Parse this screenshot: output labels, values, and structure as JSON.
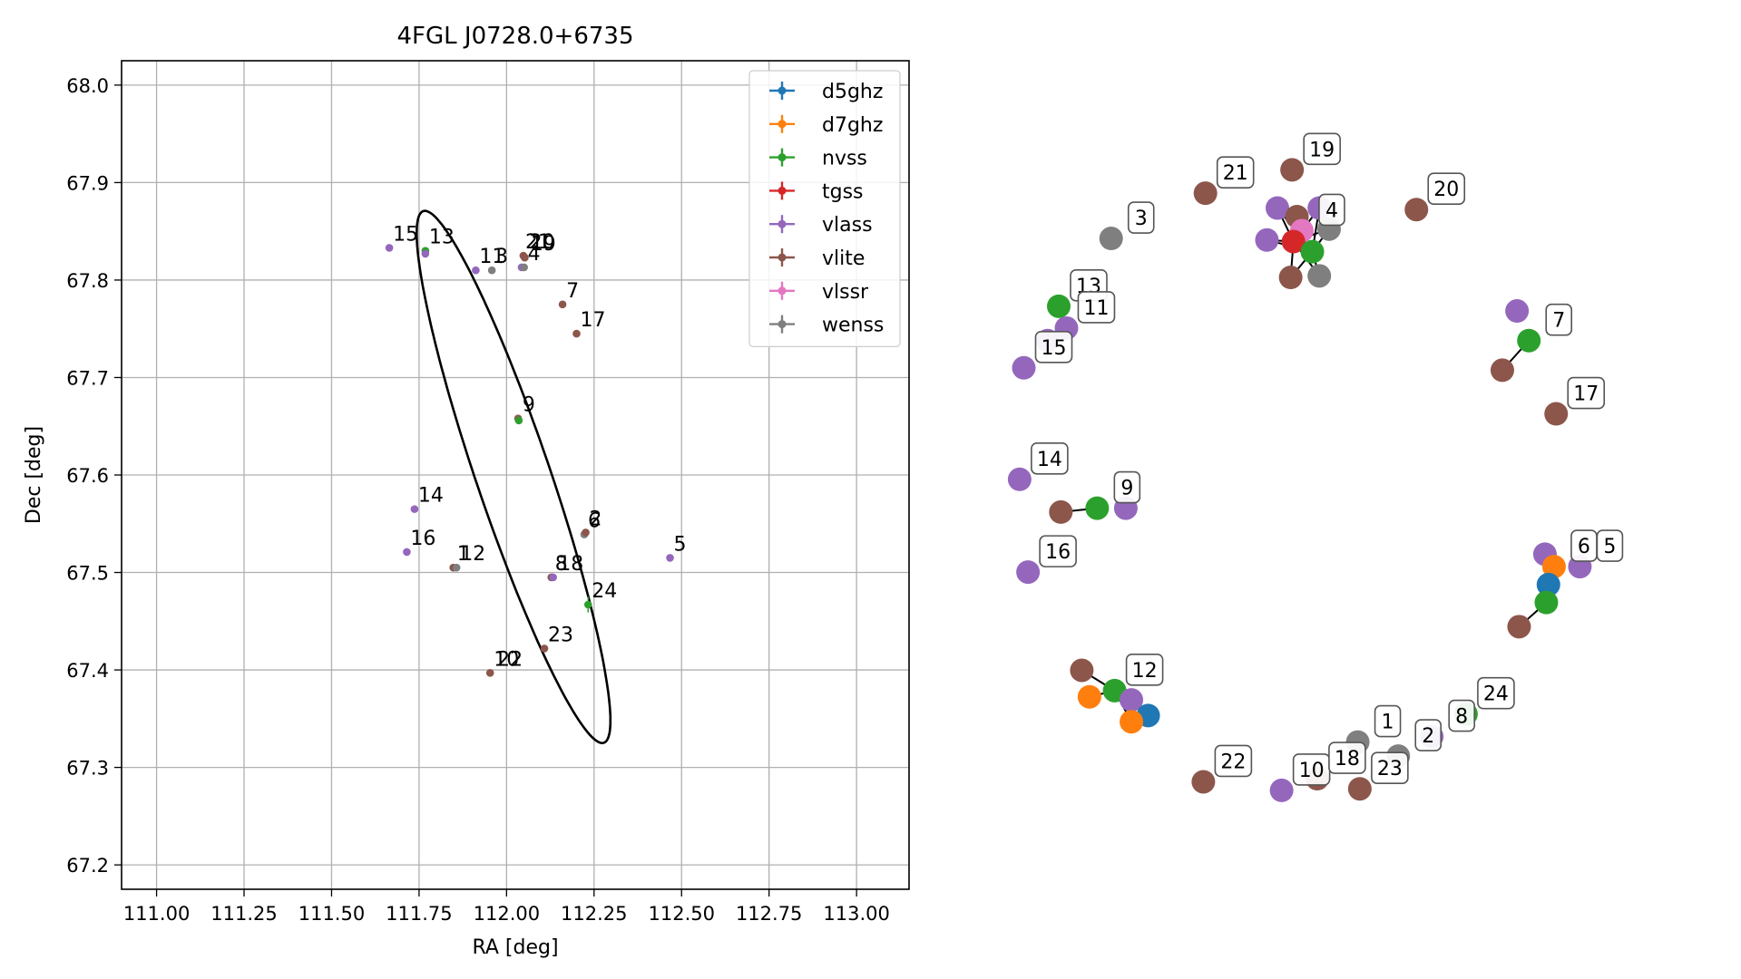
{
  "colors": {
    "d5ghz": "#1f77b4",
    "d7ghz": "#ff7f0e",
    "nvss": "#2ca02c",
    "tgss": "#d62728",
    "vlass": "#9467bd",
    "vlite": "#8c564b",
    "vlssr": "#e377c2",
    "wenss": "#7f7f7f",
    "grid": "#b0b0b0",
    "label_box_edge": "#555555"
  },
  "chart_data": [
    {
      "type": "scatter",
      "title": "4FGL J0728.0+6735",
      "xlabel": "RA [deg]",
      "ylabel": "Dec [deg]",
      "xlim": [
        110.9,
        113.15
      ],
      "ylim": [
        67.175,
        68.025
      ],
      "xticks": [
        111.0,
        111.25,
        111.5,
        111.75,
        112.0,
        112.25,
        112.5,
        112.75,
        113.0
      ],
      "xtick_labels": [
        "111.00",
        "111.25",
        "111.50",
        "111.75",
        "112.00",
        "112.25",
        "112.50",
        "112.75",
        "113.00"
      ],
      "yticks": [
        67.2,
        67.3,
        67.4,
        67.5,
        67.6,
        67.7,
        67.8,
        67.9,
        68.0
      ],
      "ytick_labels": [
        "67.2",
        "67.3",
        "67.4",
        "67.5",
        "67.6",
        "67.7",
        "67.8",
        "67.9",
        "68.0"
      ],
      "grid": true,
      "legend_position": "top-right",
      "legend": [
        "d5ghz",
        "d7ghz",
        "nvss",
        "tgss",
        "vlass",
        "vlite",
        "vlssr",
        "wenss"
      ],
      "ellipse": {
        "center": [
          112.02,
          67.598
        ],
        "semi_major_ra": 0.271,
        "semi_major_dec": 0.267,
        "semi_minor": 0.08
      },
      "points": [
        {
          "ra": 111.665,
          "dec": 67.833,
          "survey": "vlass"
        },
        {
          "ra": 111.768,
          "dec": 67.83,
          "survey": "nvss"
        },
        {
          "ra": 111.768,
          "dec": 67.827,
          "survey": "vlass"
        },
        {
          "ra": 111.912,
          "dec": 67.81,
          "survey": "vlass"
        },
        {
          "ra": 111.958,
          "dec": 67.81,
          "survey": "wenss"
        },
        {
          "ra": 112.048,
          "dec": 67.825,
          "survey": "vlite"
        },
        {
          "ra": 112.052,
          "dec": 67.823,
          "survey": "vlite"
        },
        {
          "ra": 112.043,
          "dec": 67.813,
          "survey": "vlass"
        },
        {
          "ra": 112.05,
          "dec": 67.813,
          "survey": "wenss"
        },
        {
          "ra": 112.16,
          "dec": 67.775,
          "survey": "vlite"
        },
        {
          "ra": 112.2,
          "dec": 67.745,
          "survey": "vlite"
        },
        {
          "ra": 112.033,
          "dec": 67.658,
          "survey": "vlite"
        },
        {
          "ra": 112.035,
          "dec": 67.656,
          "survey": "nvss"
        },
        {
          "ra": 111.737,
          "dec": 67.565,
          "survey": "vlass"
        },
        {
          "ra": 111.715,
          "dec": 67.521,
          "survey": "vlass"
        },
        {
          "ra": 112.222,
          "dec": 67.539,
          "survey": "wenss"
        },
        {
          "ra": 112.226,
          "dec": 67.541,
          "survey": "vlite"
        },
        {
          "ra": 112.467,
          "dec": 67.515,
          "survey": "vlass"
        },
        {
          "ra": 111.848,
          "dec": 67.505,
          "survey": "vlite"
        },
        {
          "ra": 111.857,
          "dec": 67.505,
          "survey": "wenss"
        },
        {
          "ra": 112.128,
          "dec": 67.495,
          "survey": "vlite"
        },
        {
          "ra": 112.133,
          "dec": 67.495,
          "survey": "vlass"
        },
        {
          "ra": 112.233,
          "dec": 67.467,
          "survey": "nvss",
          "dec_err": 0.008
        },
        {
          "ra": 112.108,
          "dec": 67.422,
          "survey": "vlite"
        },
        {
          "ra": 111.953,
          "dec": 67.397,
          "survey": "vlite"
        }
      ],
      "labels": [
        {
          "text": "15",
          "ra": 111.665,
          "dec": 67.833
        },
        {
          "text": "13",
          "ra": 111.768,
          "dec": 67.83
        },
        {
          "text": "11",
          "ra": 111.912,
          "dec": 67.81
        },
        {
          "text": "3",
          "ra": 111.958,
          "dec": 67.81
        },
        {
          "text": "21",
          "ra": 112.043,
          "dec": 67.825
        },
        {
          "text": "20",
          "ra": 112.055,
          "dec": 67.825
        },
        {
          "text": "19",
          "ra": 112.058,
          "dec": 67.823
        },
        {
          "text": "4",
          "ra": 112.05,
          "dec": 67.813
        },
        {
          "text": "7",
          "ra": 112.16,
          "dec": 67.775
        },
        {
          "text": "17",
          "ra": 112.2,
          "dec": 67.745
        },
        {
          "text": "9",
          "ra": 112.035,
          "dec": 67.658
        },
        {
          "text": "14",
          "ra": 111.737,
          "dec": 67.565
        },
        {
          "text": "16",
          "ra": 111.715,
          "dec": 67.521
        },
        {
          "text": "6",
          "ra": 112.222,
          "dec": 67.539
        },
        {
          "text": "2",
          "ra": 112.226,
          "dec": 67.541
        },
        {
          "text": "5",
          "ra": 112.467,
          "dec": 67.515
        },
        {
          "text": "1",
          "ra": 111.848,
          "dec": 67.505
        },
        {
          "text": "12",
          "ra": 111.857,
          "dec": 67.505
        },
        {
          "text": "8",
          "ra": 112.128,
          "dec": 67.495
        },
        {
          "text": "18",
          "ra": 112.137,
          "dec": 67.495
        },
        {
          "text": "24",
          "ra": 112.233,
          "dec": 67.467
        },
        {
          "text": "23",
          "ra": 112.108,
          "dec": 67.422
        },
        {
          "text": "10",
          "ra": 111.953,
          "dec": 67.397
        },
        {
          "text": "22",
          "ra": 111.963,
          "dec": 67.397
        }
      ]
    },
    {
      "type": "network",
      "description_free": true,
      "nodes": [
        {
          "id": "n4a",
          "survey": "vlass",
          "x": 0.4,
          "y": 0.125
        },
        {
          "id": "n4b",
          "survey": "vlass",
          "x": 0.46,
          "y": 0.125
        },
        {
          "id": "n4c",
          "survey": "vlite",
          "x": 0.428,
          "y": 0.136
        },
        {
          "id": "n4d",
          "survey": "vlass",
          "x": 0.385,
          "y": 0.166
        },
        {
          "id": "n4e",
          "survey": "vlssr",
          "x": 0.435,
          "y": 0.154
        },
        {
          "id": "n4f",
          "survey": "wenss",
          "x": 0.474,
          "y": 0.152
        },
        {
          "id": "n4g",
          "survey": "tgss",
          "x": 0.423,
          "y": 0.168
        },
        {
          "id": "n4h",
          "survey": "nvss",
          "x": 0.45,
          "y": 0.181
        },
        {
          "id": "n4i",
          "survey": "vlite",
          "x": 0.419,
          "y": 0.214
        },
        {
          "id": "n4j",
          "survey": "wenss",
          "x": 0.46,
          "y": 0.212
        },
        {
          "id": "n19",
          "survey": "vlite",
          "x": 0.421,
          "y": 0.076
        },
        {
          "id": "n21",
          "survey": "vlite",
          "x": 0.297,
          "y": 0.106
        },
        {
          "id": "n20",
          "survey": "vlite",
          "x": 0.599,
          "y": 0.127
        },
        {
          "id": "n3",
          "survey": "wenss",
          "x": 0.162,
          "y": 0.164
        },
        {
          "id": "n13a",
          "survey": "nvss",
          "x": 0.087,
          "y": 0.251
        },
        {
          "id": "n13b",
          "survey": "vlass",
          "x": 0.098,
          "y": 0.279
        },
        {
          "id": "n13c",
          "survey": "vlass",
          "x": 0.071,
          "y": 0.295
        },
        {
          "id": "n15",
          "survey": "vlass",
          "x": 0.037,
          "y": 0.33
        },
        {
          "id": "n7a",
          "survey": "vlass",
          "x": 0.743,
          "y": 0.257
        },
        {
          "id": "n7b",
          "survey": "nvss",
          "x": 0.76,
          "y": 0.295
        },
        {
          "id": "n7c",
          "survey": "vlite",
          "x": 0.722,
          "y": 0.333
        },
        {
          "id": "n17",
          "survey": "vlite",
          "x": 0.799,
          "y": 0.389
        },
        {
          "id": "n14",
          "survey": "vlass",
          "x": 0.031,
          "y": 0.473
        },
        {
          "id": "n9a",
          "survey": "vlite",
          "x": 0.09,
          "y": 0.515
        },
        {
          "id": "n9b",
          "survey": "nvss",
          "x": 0.142,
          "y": 0.51
        },
        {
          "id": "n9c",
          "survey": "vlass",
          "x": 0.183,
          "y": 0.51
        },
        {
          "id": "n16",
          "survey": "vlass",
          "x": 0.043,
          "y": 0.592
        },
        {
          "id": "n6a",
          "survey": "vlass",
          "x": 0.783,
          "y": 0.569
        },
        {
          "id": "n6b",
          "survey": "d7ghz",
          "x": 0.796,
          "y": 0.585
        },
        {
          "id": "n6c",
          "survey": "d5ghz",
          "x": 0.788,
          "y": 0.608
        },
        {
          "id": "n6d",
          "survey": "nvss",
          "x": 0.785,
          "y": 0.631
        },
        {
          "id": "n6e",
          "survey": "vlite",
          "x": 0.746,
          "y": 0.662
        },
        {
          "id": "n5",
          "survey": "vlass",
          "x": 0.833,
          "y": 0.585
        },
        {
          "id": "n12a",
          "survey": "vlite",
          "x": 0.12,
          "y": 0.718
        },
        {
          "id": "n12b",
          "survey": "d7ghz",
          "x": 0.131,
          "y": 0.752
        },
        {
          "id": "n12c",
          "survey": "nvss",
          "x": 0.167,
          "y": 0.744
        },
        {
          "id": "n12d",
          "survey": "vlass",
          "x": 0.191,
          "y": 0.756
        },
        {
          "id": "n12e",
          "survey": "d5ghz",
          "x": 0.215,
          "y": 0.776
        },
        {
          "id": "n12f",
          "survey": "d7ghz",
          "x": 0.191,
          "y": 0.784
        },
        {
          "id": "n1",
          "survey": "wenss",
          "x": 0.515,
          "y": 0.81
        },
        {
          "id": "n2",
          "survey": "wenss",
          "x": 0.573,
          "y": 0.828
        },
        {
          "id": "n8",
          "survey": "vlass",
          "x": 0.621,
          "y": 0.803
        },
        {
          "id": "n24",
          "survey": "nvss",
          "x": 0.67,
          "y": 0.774
        },
        {
          "id": "n22",
          "survey": "vlite",
          "x": 0.294,
          "y": 0.861
        },
        {
          "id": "n10",
          "survey": "vlass",
          "x": 0.406,
          "y": 0.872
        },
        {
          "id": "n18",
          "survey": "vlite",
          "x": 0.457,
          "y": 0.857
        },
        {
          "id": "n23",
          "survey": "vlite",
          "x": 0.518,
          "y": 0.87
        }
      ],
      "edges": [
        [
          "n4a",
          "n4g"
        ],
        [
          "n4b",
          "n4g"
        ],
        [
          "n4c",
          "n4g"
        ],
        [
          "n4d",
          "n4g"
        ],
        [
          "n4e",
          "n4g"
        ],
        [
          "n4f",
          "n4g"
        ],
        [
          "n4h",
          "n4g"
        ],
        [
          "n4i",
          "n4g"
        ],
        [
          "n4j",
          "n4g"
        ],
        [
          "n4a",
          "n4h"
        ],
        [
          "n4b",
          "n4h"
        ],
        [
          "n4d",
          "n4h"
        ],
        [
          "n4i",
          "n4h"
        ],
        [
          "n4j",
          "n4h"
        ],
        [
          "n4f",
          "n4h"
        ],
        [
          "n13a",
          "n13b"
        ],
        [
          "n13b",
          "n13c"
        ],
        [
          "n7b",
          "n7c"
        ],
        [
          "n9a",
          "n9b"
        ],
        [
          "n6d",
          "n6e"
        ],
        [
          "n6b",
          "n6c"
        ],
        [
          "n12a",
          "n12c"
        ],
        [
          "n12b",
          "n12c"
        ],
        [
          "n12c",
          "n12d"
        ],
        [
          "n12c",
          "n12f"
        ],
        [
          "n12f",
          "n12d"
        ]
      ],
      "node_labels": [
        {
          "text": "19",
          "node": "n19"
        },
        {
          "text": "21",
          "node": "n21"
        },
        {
          "text": "20",
          "node": "n20"
        },
        {
          "text": "3",
          "node": "n3"
        },
        {
          "text": "4",
          "node": "n4e"
        },
        {
          "text": "13",
          "node": "n13a"
        },
        {
          "text": "11",
          "node": "n13b"
        },
        {
          "text": "15",
          "node": "n15"
        },
        {
          "text": "7",
          "node": "n7b"
        },
        {
          "text": "17",
          "node": "n17"
        },
        {
          "text": "14",
          "node": "n14"
        },
        {
          "text": "9",
          "node": "n9b"
        },
        {
          "text": "16",
          "node": "n16"
        },
        {
          "text": "6",
          "node": "n6b"
        },
        {
          "text": "5",
          "node": "n5"
        },
        {
          "text": "12",
          "node": "n12c"
        },
        {
          "text": "1",
          "node": "n1"
        },
        {
          "text": "2",
          "node": "n2"
        },
        {
          "text": "8",
          "node": "n8"
        },
        {
          "text": "24",
          "node": "n24"
        },
        {
          "text": "22",
          "node": "n22"
        },
        {
          "text": "10",
          "node": "n10"
        },
        {
          "text": "18",
          "node": "n18"
        },
        {
          "text": "23",
          "node": "n23"
        }
      ]
    }
  ]
}
